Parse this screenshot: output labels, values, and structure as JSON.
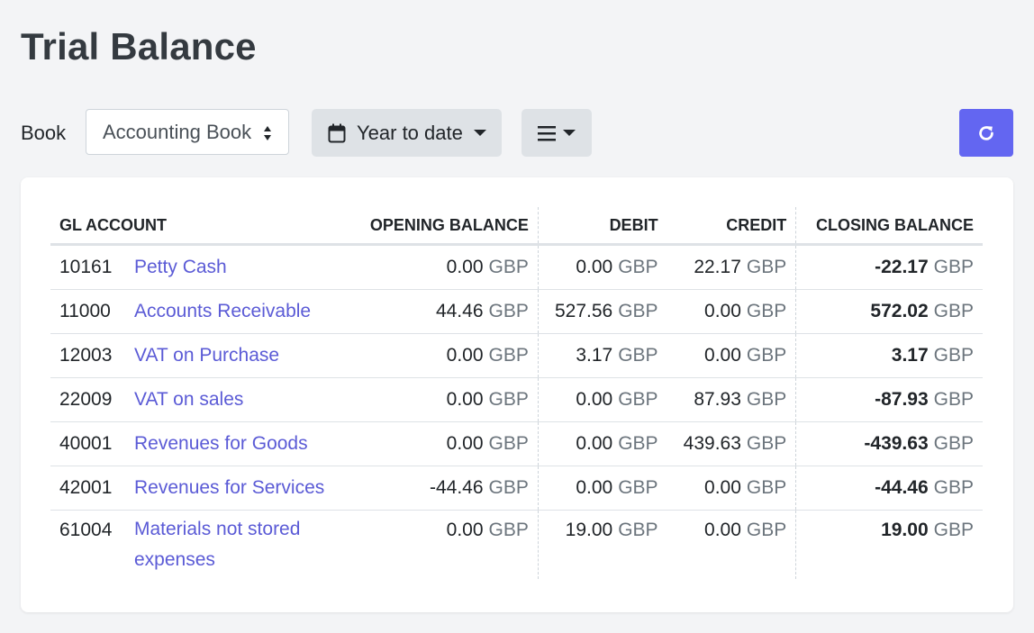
{
  "page": {
    "title": "Trial Balance"
  },
  "toolbar": {
    "book_label": "Book",
    "book_value": "Accounting Book",
    "period_label": "Year to date"
  },
  "table": {
    "headers": {
      "gl_account": "GL ACCOUNT",
      "opening": "OPENING BALANCE",
      "debit": "DEBIT",
      "credit": "CREDIT",
      "closing": "CLOSING BALANCE"
    },
    "currency": "GBP",
    "rows": [
      {
        "code": "10161",
        "name": "Petty Cash",
        "opening": "0.00",
        "debit": "0.00",
        "credit": "22.17",
        "closing": "-22.17"
      },
      {
        "code": "11000",
        "name": "Accounts Receivable",
        "opening": "44.46",
        "debit": "527.56",
        "credit": "0.00",
        "closing": "572.02"
      },
      {
        "code": "12003",
        "name": "VAT on Purchase",
        "opening": "0.00",
        "debit": "3.17",
        "credit": "0.00",
        "closing": "3.17"
      },
      {
        "code": "22009",
        "name": "VAT on sales",
        "opening": "0.00",
        "debit": "0.00",
        "credit": "87.93",
        "closing": "-87.93"
      },
      {
        "code": "40001",
        "name": "Revenues for Goods",
        "opening": "0.00",
        "debit": "0.00",
        "credit": "439.63",
        "closing": "-439.63"
      },
      {
        "code": "42001",
        "name": "Revenues for Services",
        "opening": "-44.46",
        "debit": "0.00",
        "credit": "0.00",
        "closing": "-44.46"
      },
      {
        "code": "61004",
        "name": "Materials not stored expenses",
        "opening": "0.00",
        "debit": "19.00",
        "credit": "0.00",
        "closing": "19.00"
      }
    ]
  },
  "colors": {
    "accent": "#6366f1",
    "link": "#5b5bd6",
    "muted": "#6c757d",
    "background": "#f3f4f6"
  },
  "icons": {
    "book_select": "sort-arrows-icon",
    "period": "calendar-icon",
    "columns": "list-icon",
    "refresh": "refresh-icon"
  }
}
